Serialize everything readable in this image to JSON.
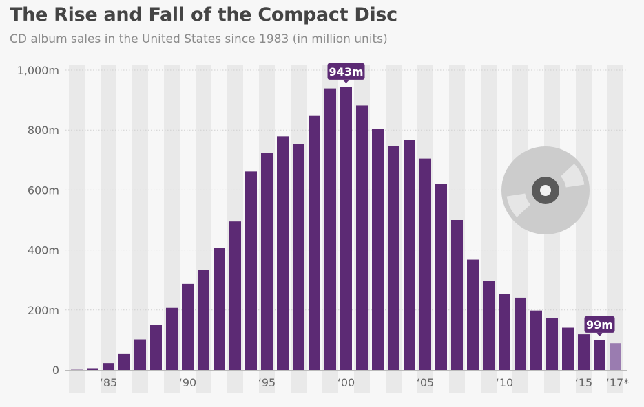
{
  "title": "The Rise and Fall of the Compact Disc",
  "subtitle": "CD album sales in the United States since 1983 (in million units)",
  "colors": {
    "bar": "#5c2a74",
    "bar_estimate": "#9a7cb0",
    "stripe": "#e9e9e9",
    "background": "#f7f7f7",
    "disc": "#cccccc"
  },
  "icon": "compact-disc-icon",
  "chart_data": {
    "type": "bar",
    "title": "The Rise and Fall of the Compact Disc",
    "subtitle": "CD album sales in the United States since 1983 (in million units)",
    "xlabel": "",
    "ylabel": "",
    "ylim": [
      0,
      1000
    ],
    "yticks": [
      0,
      200,
      400,
      600,
      800,
      1000
    ],
    "ytick_labels": [
      "0",
      "200m",
      "400m",
      "600m",
      "800m",
      "1,000m"
    ],
    "grid": true,
    "categories": [
      1983,
      1984,
      1985,
      1986,
      1987,
      1988,
      1989,
      1990,
      1991,
      1992,
      1993,
      1994,
      1995,
      1996,
      1997,
      1998,
      1999,
      2000,
      2001,
      2002,
      2003,
      2004,
      2005,
      2006,
      2007,
      2008,
      2009,
      2010,
      2011,
      2012,
      2013,
      2014,
      2015,
      2016,
      2017
    ],
    "values": [
      0.8,
      5.8,
      22.6,
      53,
      102,
      150,
      207,
      287,
      333,
      408,
      495,
      662,
      723,
      779,
      753,
      847,
      939,
      943,
      882,
      803,
      746,
      767,
      705,
      620,
      500,
      368,
      297,
      253,
      241,
      198,
      172,
      141,
      119,
      99,
      89
    ],
    "estimate_categories": [
      2017
    ],
    "xtick_labels": [
      {
        "year": 1985,
        "label": "‘85"
      },
      {
        "year": 1990,
        "label": "‘90"
      },
      {
        "year": 1995,
        "label": "‘95"
      },
      {
        "year": 2000,
        "label": "‘00"
      },
      {
        "year": 2005,
        "label": "‘05"
      },
      {
        "year": 2010,
        "label": "‘10"
      },
      {
        "year": 2015,
        "label": "‘15"
      },
      {
        "year": 2017,
        "label": "‘17*"
      }
    ],
    "annotations": [
      {
        "year": 2000,
        "label": "943m"
      },
      {
        "year": 2016,
        "label": "99m"
      }
    ]
  }
}
